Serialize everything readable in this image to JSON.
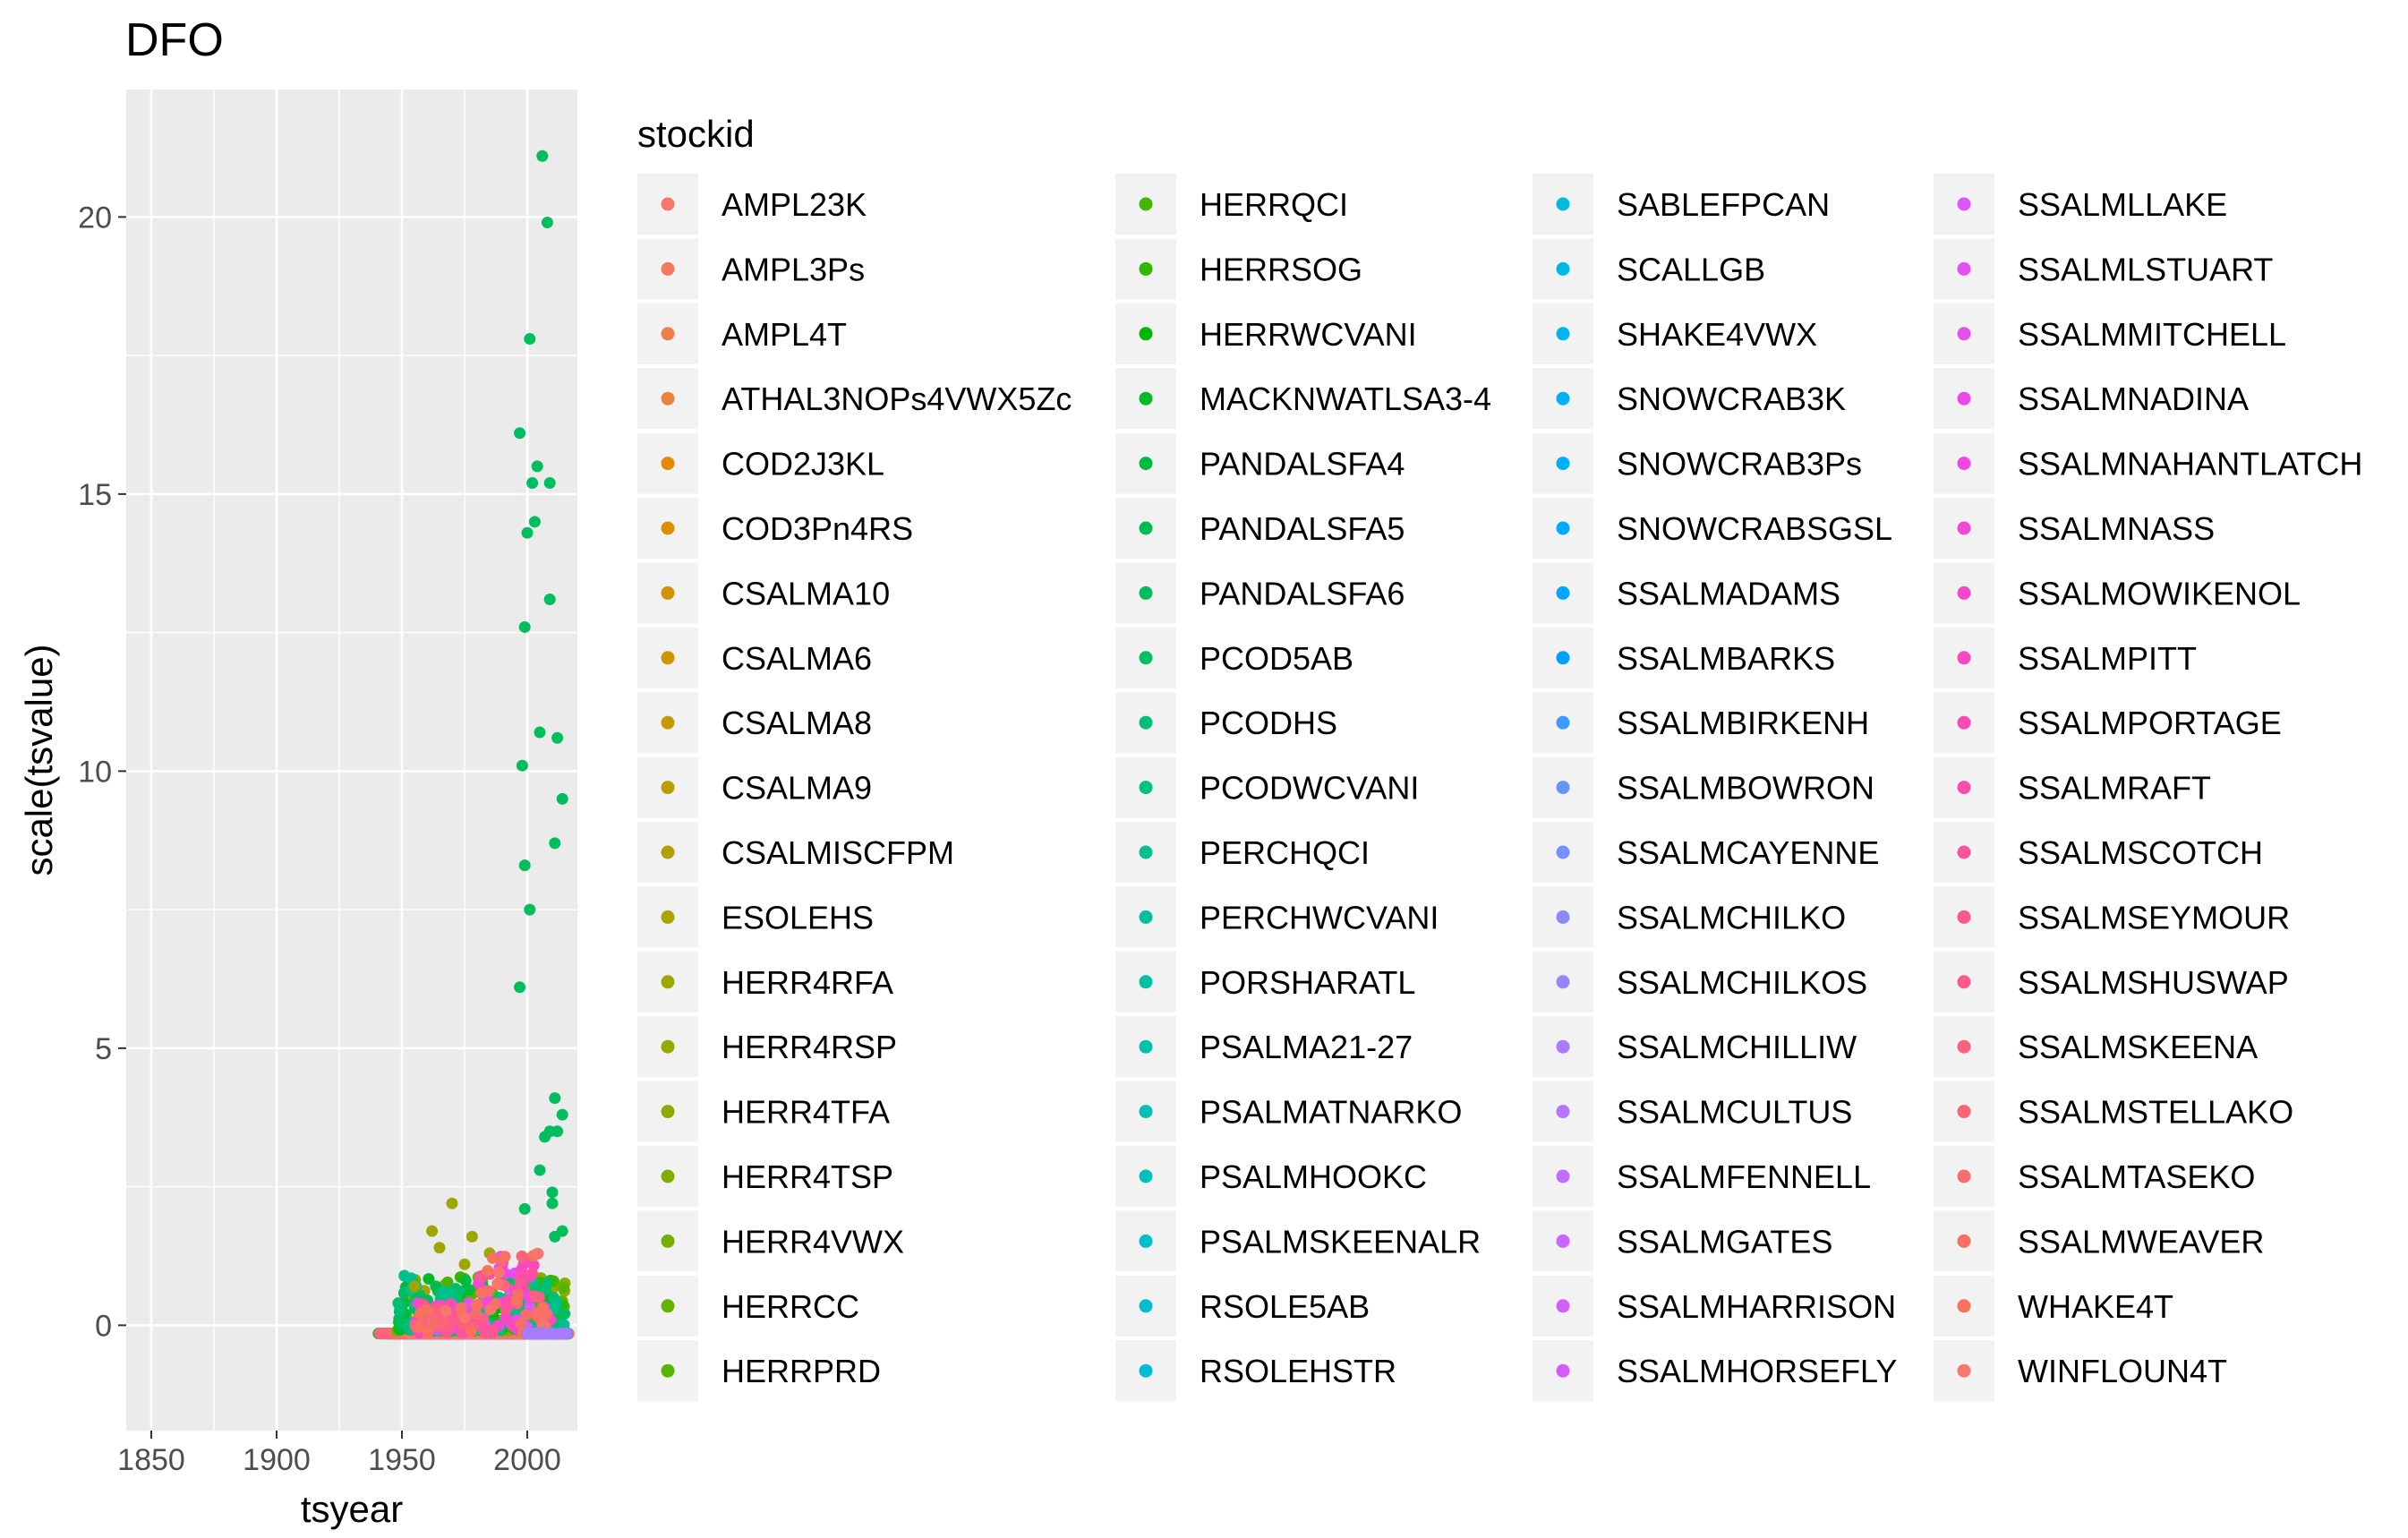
{
  "chart_data": {
    "type": "scatter",
    "title": "DFO",
    "xlabel": "tsyear",
    "ylabel": "scale(tsvalue)",
    "xlim": [
      1840,
      2020
    ],
    "ylim": [
      -1.9,
      22.3
    ],
    "x_ticks": [
      1850,
      1900,
      1950,
      2000
    ],
    "y_ticks": [
      0,
      5,
      10,
      15,
      20
    ],
    "grid": true,
    "legend": {
      "title": "stockid",
      "placement": "right",
      "columns": 4
    },
    "series": [
      {
        "name": "AMPL23K",
        "color": "#F8766D"
      },
      {
        "name": "AMPL3Ps",
        "color": "#F47A5E"
      },
      {
        "name": "AMPL4T",
        "color": "#EF7F4E"
      },
      {
        "name": "ATHAL3NOPs4VWX5Zc",
        "color": "#E9843C"
      },
      {
        "name": "COD2J3KL",
        "color": "#E38900"
      },
      {
        "name": "COD3Pn4RS",
        "color": "#DC8E00"
      },
      {
        "name": "CSALMA10",
        "color": "#D59200"
      },
      {
        "name": "CSALMA6",
        "color": "#CD9600"
      },
      {
        "name": "CSALMA8",
        "color": "#C59A00"
      },
      {
        "name": "CSALMA9",
        "color": "#BC9D00"
      },
      {
        "name": "CSALMISCFPM",
        "color": "#B3A000"
      },
      {
        "name": "ESOLEHS",
        "color": "#AAA300"
      },
      {
        "name": "HERR4RFA",
        "color": "#A0A600"
      },
      {
        "name": "HERR4RSP",
        "color": "#96A900"
      },
      {
        "name": "HERR4TFA",
        "color": "#8BAB00"
      },
      {
        "name": "HERR4TSP",
        "color": "#80AE00"
      },
      {
        "name": "HERR4VWX",
        "color": "#73B000"
      },
      {
        "name": "HERRCC",
        "color": "#66B200"
      },
      {
        "name": "HERRPRD",
        "color": "#57B400"
      },
      {
        "name": "HERRQCI",
        "color": "#47B500"
      },
      {
        "name": "HERRSOG",
        "color": "#31B700"
      },
      {
        "name": "HERRWCVANI",
        "color": "#00B800"
      },
      {
        "name": "MACKNWATLSA3-4",
        "color": "#00BA27"
      },
      {
        "name": "PANDALSFA4",
        "color": "#00BB3D"
      },
      {
        "name": "PANDALSFA5",
        "color": "#00BC4E"
      },
      {
        "name": "PANDALSFA6",
        "color": "#00BD5D"
      },
      {
        "name": "PCOD5AB",
        "color": "#00BE6A"
      },
      {
        "name": "PCODHS",
        "color": "#00BF76"
      },
      {
        "name": "PCODWCVANI",
        "color": "#00C082"
      },
      {
        "name": "PERCHQCI",
        "color": "#00C08D"
      },
      {
        "name": "PERCHWCVANI",
        "color": "#00C098"
      },
      {
        "name": "PORSHARATL",
        "color": "#00C1A2"
      },
      {
        "name": "PSALMA21-27",
        "color": "#00C1AC"
      },
      {
        "name": "PSALMATNARKO",
        "color": "#00C0B5"
      },
      {
        "name": "PSALMHOOKC",
        "color": "#00C0BF"
      },
      {
        "name": "PSALMSKEENALR",
        "color": "#00BFC8"
      },
      {
        "name": "RSOLE5AB",
        "color": "#00BED0"
      },
      {
        "name": "RSOLEHSTR",
        "color": "#00BCD8"
      },
      {
        "name": "SABLEFPCAN",
        "color": "#00BAE0"
      },
      {
        "name": "SCALLGB",
        "color": "#00B8E7"
      },
      {
        "name": "SHAKE4VWX",
        "color": "#00B5EE"
      },
      {
        "name": "SNOWCRAB3K",
        "color": "#00B2F4"
      },
      {
        "name": "SNOWCRAB3Ps",
        "color": "#00AEFA"
      },
      {
        "name": "SNOWCRABSGSL",
        "color": "#00AAFE"
      },
      {
        "name": "SSALMADAMS",
        "color": "#00A5FF"
      },
      {
        "name": "SSALMBARKS",
        "color": "#00A0FF"
      },
      {
        "name": "SSALMBIRKENH",
        "color": "#3C9BFF"
      },
      {
        "name": "SSALMBOWRON",
        "color": "#6195FF"
      },
      {
        "name": "SSALMCAYENNE",
        "color": "#798FFF"
      },
      {
        "name": "SSALMCHILKO",
        "color": "#8B89FF"
      },
      {
        "name": "SSALMCHILKOS",
        "color": "#9B82FF"
      },
      {
        "name": "SSALMCHILLIW",
        "color": "#A97BFF"
      },
      {
        "name": "SSALMCULTUS",
        "color": "#B474FF"
      },
      {
        "name": "SSALMFENNELL",
        "color": "#BF6DFF"
      },
      {
        "name": "SSALMGATES",
        "color": "#C866FF"
      },
      {
        "name": "SSALMHARRISON",
        "color": "#D060FF"
      },
      {
        "name": "SSALMHORSEFLY",
        "color": "#D75AFF"
      },
      {
        "name": "SSALMLLAKE",
        "color": "#DD55FC"
      },
      {
        "name": "SSALMLSTUART",
        "color": "#E351F6"
      },
      {
        "name": "SSALMMITCHELL",
        "color": "#E84DEF"
      },
      {
        "name": "SSALMNADINA",
        "color": "#EC4AE7"
      },
      {
        "name": "SSALMNAHANTLATCH",
        "color": "#F048DE"
      },
      {
        "name": "SSALMNASS",
        "color": "#F347D5"
      },
      {
        "name": "SSALMOWIKENOL",
        "color": "#F647CB"
      },
      {
        "name": "SSALMPITT",
        "color": "#F848C0"
      },
      {
        "name": "SSALMPORTAGE",
        "color": "#FA4AB5"
      },
      {
        "name": "SSALMRAFT",
        "color": "#FB4DAA"
      },
      {
        "name": "SSALMSCOTCH",
        "color": "#FC519F"
      },
      {
        "name": "SSALMSEYMOUR",
        "color": "#FC5694"
      },
      {
        "name": "SSALMSHUSWAP",
        "color": "#FC5C89"
      },
      {
        "name": "SSALMSKEENA",
        "color": "#FB617F"
      },
      {
        "name": "SSALMSTELLAKO",
        "color": "#FA6675"
      },
      {
        "name": "SSALMTASEKO",
        "color": "#F96C6C"
      },
      {
        "name": "SSALMWEAVER",
        "color": "#F87063"
      },
      {
        "name": "WHAKE4T",
        "color": "#F7735E"
      },
      {
        "name": "WINFLOUN4T",
        "color": "#F8766D"
      }
    ],
    "highlighted_points": {
      "series": "PANDALSFA6",
      "points": [
        [
          2006,
          21.1
        ],
        [
          2008,
          19.9
        ],
        [
          2001,
          17.8
        ],
        [
          1997,
          16.1
        ],
        [
          2004,
          15.5
        ],
        [
          2002,
          15.2
        ],
        [
          2009,
          15.2
        ],
        [
          2003,
          14.5
        ],
        [
          2000,
          14.3
        ],
        [
          2009,
          13.1
        ],
        [
          1999,
          12.6
        ],
        [
          2005,
          10.7
        ],
        [
          2012,
          10.6
        ],
        [
          1998,
          10.1
        ],
        [
          2014,
          9.5
        ],
        [
          2011,
          8.7
        ],
        [
          1999,
          8.3
        ],
        [
          2001,
          7.5
        ],
        [
          1997,
          6.1
        ],
        [
          2011,
          4.1
        ],
        [
          2014,
          3.8
        ],
        [
          2009,
          3.5
        ],
        [
          2012,
          3.5
        ],
        [
          2007,
          3.4
        ],
        [
          2005,
          2.8
        ],
        [
          2010,
          2.4
        ],
        [
          2010,
          2.2
        ],
        [
          1999,
          2.1
        ],
        [
          2014,
          1.7
        ],
        [
          2011,
          1.6
        ]
      ]
    }
  }
}
